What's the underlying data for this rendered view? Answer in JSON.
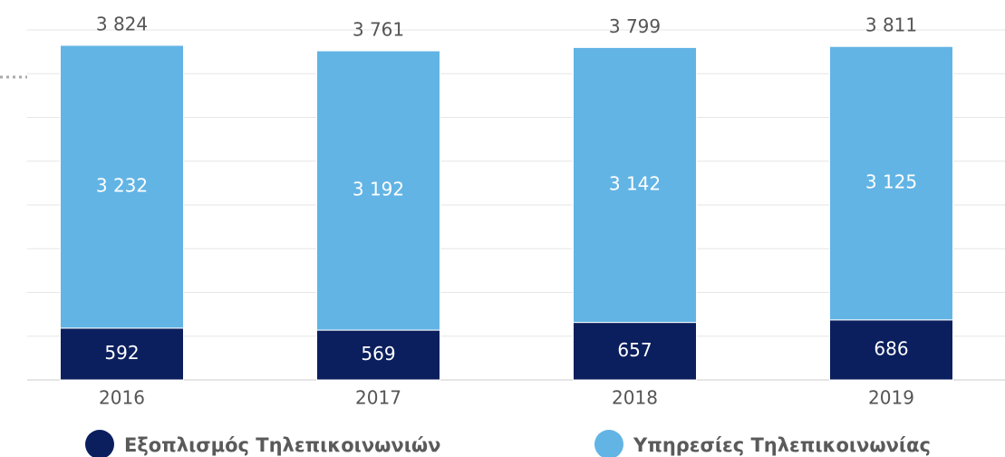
{
  "chart_data": {
    "type": "stacked_bar",
    "categories": [
      "2016",
      "2017",
      "2018",
      "2019"
    ],
    "series": [
      {
        "name": "Εξοπλισμός Τηλεπικοινωνιών",
        "color": "#0b1f5e",
        "values": [
          592,
          569,
          657,
          686
        ],
        "value_labels": [
          "592",
          "569",
          "657",
          "686"
        ]
      },
      {
        "name": "Υπηρεσίες Τηλεπικοινωνίας",
        "color": "#62b4e5",
        "values": [
          3232,
          3192,
          3142,
          3125
        ],
        "value_labels": [
          "3 232",
          "3 192",
          "3 142",
          "3 125"
        ]
      }
    ],
    "totals": [
      3824,
      3761,
      3799,
      3811
    ],
    "total_labels": [
      "3 824",
      "3 761",
      "3 799",
      "3 811"
    ],
    "ylim": [
      0,
      4000
    ],
    "yticks": [
      0,
      500,
      1000,
      1500,
      2000,
      2500,
      3000,
      3500,
      4000
    ],
    "grid": true
  }
}
